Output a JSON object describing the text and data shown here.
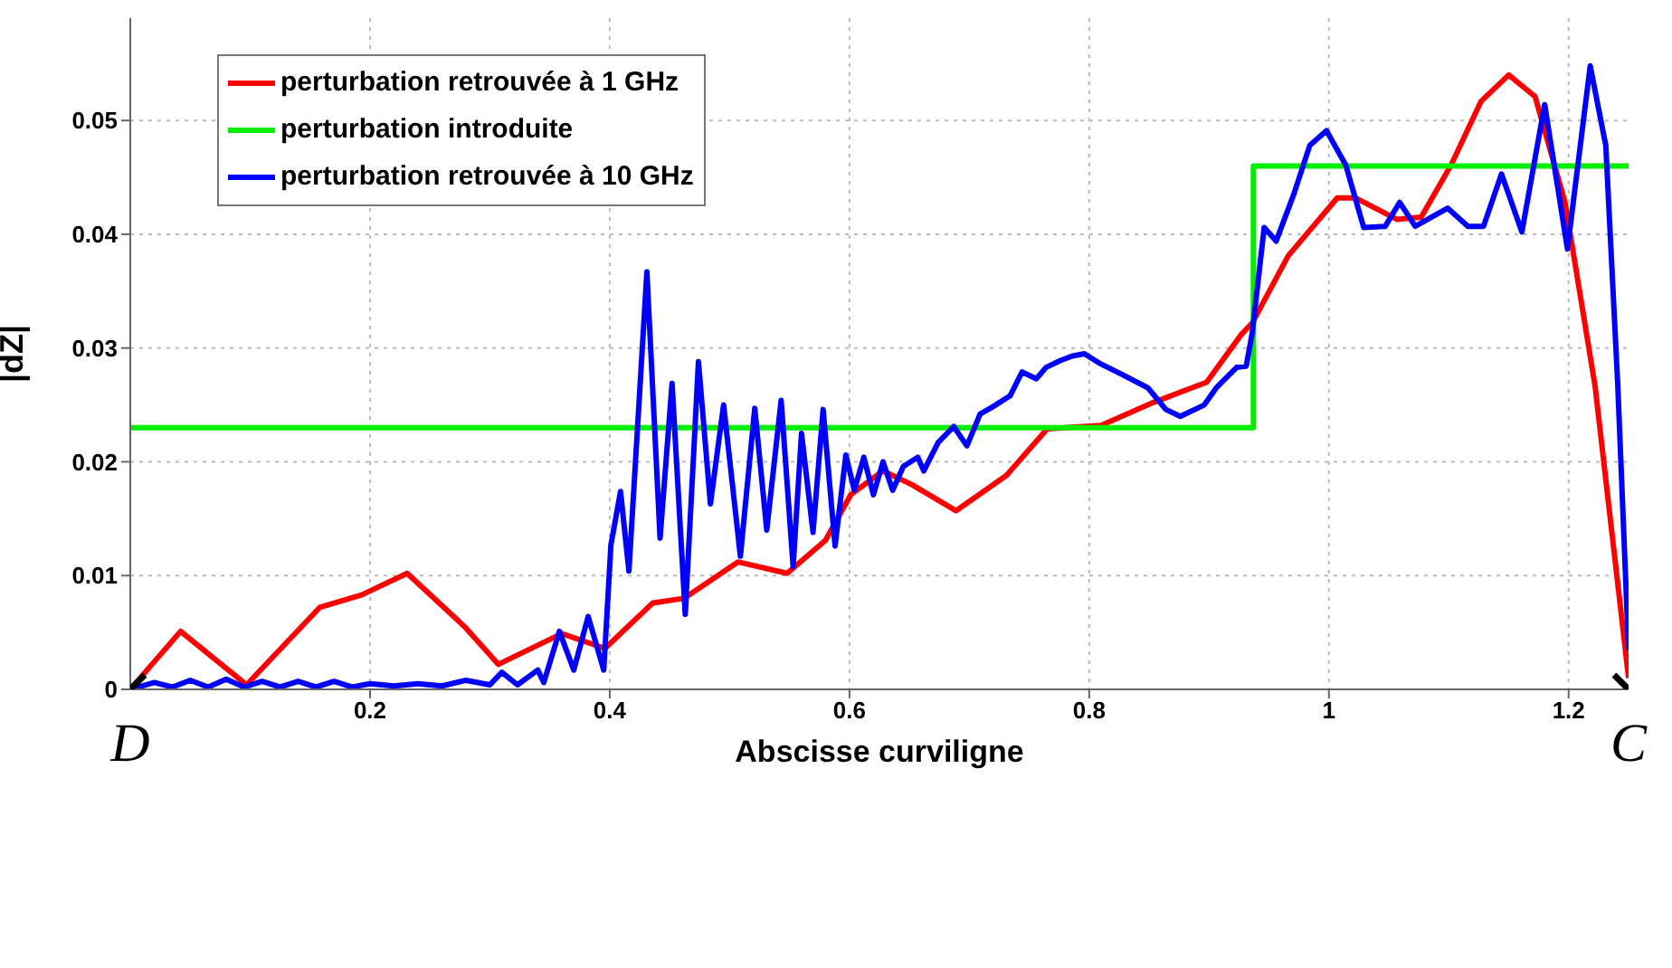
{
  "chart_data": {
    "type": "line",
    "xlabel": "Abscisse curviligne",
    "ylabel": "|dZ|",
    "xlim": [
      0,
      1.25
    ],
    "ylim": [
      0,
      0.059
    ],
    "xticks": [
      0.2,
      0.4,
      0.6,
      0.8,
      1,
      1.2
    ],
    "yticks": [
      0,
      0.01,
      0.02,
      0.03,
      0.04,
      0.05
    ],
    "grid": true,
    "legend": "top left",
    "marker": "none",
    "line_style": "solid",
    "series": [
      {
        "name": "perturbation retrouvée à 1 GHz",
        "color": "#ff0000",
        "x": [
          0,
          0.042,
          0.097,
          0.158,
          0.193,
          0.231,
          0.279,
          0.307,
          0.36,
          0.396,
          0.436,
          0.462,
          0.507,
          0.548,
          0.58,
          0.601,
          0.628,
          0.652,
          0.689,
          0.731,
          0.765,
          0.81,
          0.853,
          0.898,
          0.927,
          0.936,
          0.966,
          1.007,
          1.022,
          1.057,
          1.077,
          1.102,
          1.127,
          1.15,
          1.172,
          1.197,
          1.222,
          1.25
        ],
        "values": [
          0,
          0.0051,
          0.0004,
          0.0072,
          0.0083,
          0.0102,
          0.0055,
          0.0022,
          0.0049,
          0.0036,
          0.0076,
          0.008,
          0.0112,
          0.0102,
          0.0131,
          0.0171,
          0.0192,
          0.018,
          0.0157,
          0.0188,
          0.0229,
          0.0232,
          0.0252,
          0.027,
          0.0312,
          0.0322,
          0.0381,
          0.0432,
          0.0432,
          0.0413,
          0.0415,
          0.0461,
          0.0517,
          0.054,
          0.0521,
          0.0428,
          0.0267,
          0.001
        ]
      },
      {
        "name": "perturbation introduite",
        "color": "#00ee00",
        "x": [
          0,
          0.937,
          0.937,
          1.25
        ],
        "values": [
          0.023,
          0.023,
          0.046,
          0.046
        ]
      },
      {
        "name": "perturbation retrouvée à 10 GHz",
        "color": "#0000ff",
        "x": [
          0,
          0.02,
          0.035,
          0.05,
          0.065,
          0.08,
          0.095,
          0.11,
          0.125,
          0.14,
          0.155,
          0.17,
          0.185,
          0.2,
          0.22,
          0.24,
          0.26,
          0.28,
          0.3,
          0.31,
          0.323,
          0.34,
          0.345,
          0.358,
          0.37,
          0.382,
          0.395,
          0.401,
          0.409,
          0.416,
          0.431,
          0.442,
          0.452,
          0.463,
          0.474,
          0.484,
          0.495,
          0.509,
          0.521,
          0.531,
          0.543,
          0.553,
          0.56,
          0.5696,
          0.578,
          0.588,
          0.597,
          0.604,
          0.612,
          0.62,
          0.628,
          0.636,
          0.645,
          0.657,
          0.662,
          0.674,
          0.687,
          0.698,
          0.709,
          0.719,
          0.734,
          0.744,
          0.756,
          0.764,
          0.776,
          0.786,
          0.796,
          0.808,
          0.827,
          0.849,
          0.864,
          0.876,
          0.896,
          0.906,
          0.923,
          0.931,
          0.936,
          0.946,
          0.956,
          0.971,
          0.984,
          0.998,
          1.014,
          1.029,
          1.047,
          1.059,
          1.072,
          1.099,
          1.116,
          1.129,
          1.144,
          1.161,
          1.18,
          1.199,
          1.218,
          1.231,
          1.241,
          1.25
        ],
        "values": [
          0,
          0.0006,
          0.0002,
          0.0008,
          0.0002,
          0.0009,
          0.0002,
          0.0007,
          0.0002,
          0.0007,
          0.0002,
          0.0007,
          0.0002,
          0.0005,
          0.0003,
          0.0005,
          0.0003,
          0.0008,
          0.0004,
          0.0015,
          0.0004,
          0.0017,
          0.0006,
          0.0051,
          0.0017,
          0.0064,
          0.0017,
          0.0127,
          0.0174,
          0.0104,
          0.0367,
          0.0133,
          0.0269,
          0.0066,
          0.0288,
          0.0163,
          0.025,
          0.0117,
          0.0247,
          0.014,
          0.0254,
          0.0108,
          0.0225,
          0.0138,
          0.0246,
          0.0126,
          0.0206,
          0.0175,
          0.0204,
          0.0171,
          0.02,
          0.0175,
          0.0196,
          0.0204,
          0.0192,
          0.0217,
          0.0231,
          0.0214,
          0.0242,
          0.0248,
          0.0258,
          0.0279,
          0.0273,
          0.0283,
          0.0289,
          0.0293,
          0.0295,
          0.0287,
          0.0277,
          0.0265,
          0.0246,
          0.024,
          0.025,
          0.0265,
          0.0283,
          0.0284,
          0.0313,
          0.0406,
          0.0394,
          0.0436,
          0.0478,
          0.0491,
          0.0461,
          0.0406,
          0.0407,
          0.0428,
          0.0407,
          0.0423,
          0.0407,
          0.0407,
          0.0453,
          0.0402,
          0.0514,
          0.0387,
          0.0548,
          0.0478,
          0.0267,
          0.0034
        ]
      },
      {
        "type": "scatter",
        "color": "#000000",
        "marker": "cross",
        "x": [
          0,
          1.25
        ],
        "values": [
          0,
          0
        ]
      }
    ],
    "annotations": [
      {
        "text": "D",
        "x": 0,
        "y": 0
      },
      {
        "text": "C",
        "x": 1.25,
        "y": 0
      }
    ]
  }
}
